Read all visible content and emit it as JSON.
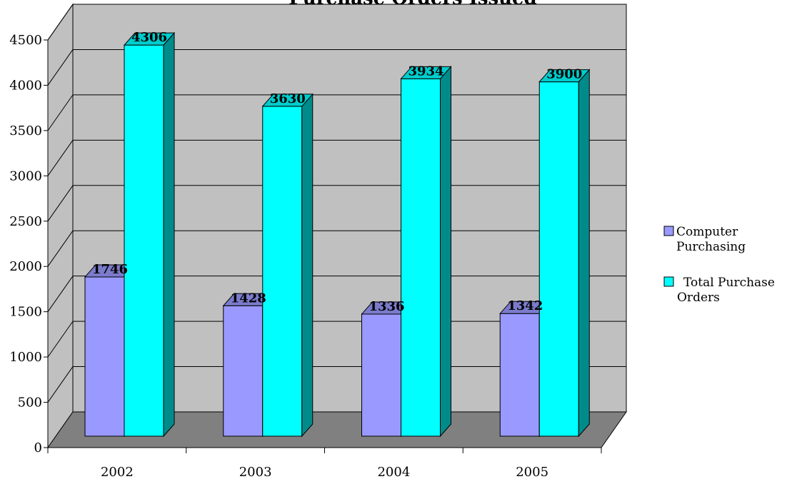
{
  "chart_data": {
    "type": "bar",
    "title": "Purchase Orders Issued",
    "categories": [
      "2002",
      "2003",
      "2004",
      "2005"
    ],
    "series": [
      {
        "name": "Computer Purchasing",
        "values": [
          1746,
          1428,
          1336,
          1342
        ],
        "color": "#9999FF"
      },
      {
        "name": "Total Purchase Orders",
        "values": [
          4306,
          3630,
          3934,
          3900
        ],
        "color": "#00FFFF"
      }
    ],
    "ylim": [
      0,
      4500
    ],
    "yticks": [
      "0",
      "500",
      "1000",
      "1500",
      "2000",
      "2500",
      "3000",
      "3500",
      "4000",
      "4500"
    ],
    "grid": true,
    "legend": "right",
    "legend_lines": [
      [
        "Computer",
        "Purchasing"
      ],
      [
        "Total Purchase",
        "Orders"
      ]
    ],
    "colors": {
      "wall": "#C0C0C0",
      "floor": "#808080",
      "series1_side": "#5F5FB2",
      "series1_top": "#7B7BCC",
      "series2_side": "#008B8B",
      "series2_top": "#00CCCC"
    }
  }
}
